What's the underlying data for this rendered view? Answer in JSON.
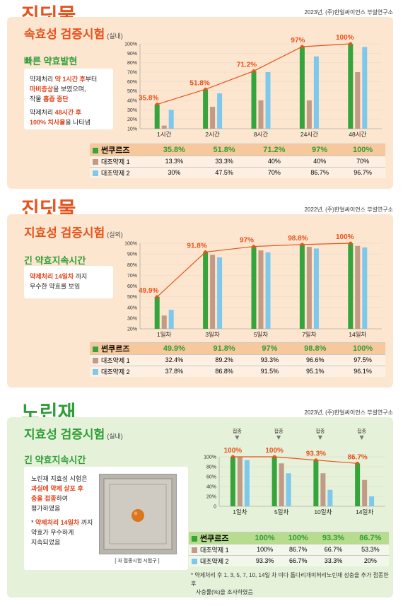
{
  "colors": {
    "main": "#35a53b",
    "ref1": "#c29a86",
    "ref2": "#7ec8ec",
    "line": "#e8521c",
    "title_orange": "#e8521c",
    "title_green": "#2f9e38"
  },
  "sections": [
    {
      "big_title": "진딧물",
      "source": "2023년, (주)한얼싸이언스 부설연구소",
      "panel_title": "속효성 검증시험",
      "panel_sub": "(실내)",
      "side_head": "빠른 약효발현",
      "note_lines": [
        {
          "parts": [
            [
              "약제처리 ",
              false
            ],
            [
              "약 1시간 후",
              true
            ],
            [
              "부터",
              false
            ]
          ]
        },
        {
          "parts": [
            [
              "마비증상",
              true
            ],
            [
              "을 보였으며,",
              false
            ]
          ]
        },
        {
          "parts": [
            [
              "작물 ",
              false
            ],
            [
              "흡즙 중단",
              true
            ]
          ]
        },
        {
          "parts": [
            [
              "약제처리 ",
              false
            ],
            [
              "48시간 후",
              true
            ]
          ]
        },
        {
          "parts": [
            [
              "100% 치사율",
              true
            ],
            [
              "을 나타냄",
              false
            ]
          ]
        }
      ]
    },
    {
      "big_title": "진딧물",
      "source": "2022년, (주)한얼싸이언스 부설연구소",
      "panel_title": "지효성 검증시험",
      "panel_sub": "(실외)",
      "side_head": "긴 약효지속시간",
      "note_lines": [
        {
          "parts": [
            [
              "약제처리 14일차",
              true
            ],
            [
              " 까지",
              false
            ]
          ]
        },
        {
          "parts": [
            [
              "우수한 약효를 보임",
              false
            ]
          ]
        }
      ]
    },
    {
      "big_title": "노린재",
      "source": "2023년, (주)한얼싸이언스 부설연구소",
      "panel_title": "지효성 검증시험",
      "panel_sub": "(실내)",
      "side_head": "긴 약효지속시간",
      "note_lines": [
        {
          "parts": [
            [
              "노린재 지효성 시험은",
              false
            ]
          ]
        },
        {
          "parts": [
            [
              "과실에 약제 살포 후",
              true
            ]
          ]
        },
        {
          "parts": [
            [
              "충을 접종",
              true
            ],
            [
              "하여",
              false
            ]
          ]
        },
        {
          "parts": [
            [
              "평가하였음",
              false
            ]
          ]
        },
        {
          "parts": [
            [
              "* ",
              false
            ],
            [
              "약제처리 14일차",
              true
            ],
            [
              " 까지",
              false
            ]
          ]
        },
        {
          "parts": [
            [
              "약효가 우수하게",
              false
            ]
          ]
        },
        {
          "parts": [
            [
              "지속되었음",
              false
            ]
          ]
        }
      ],
      "photo_caption": "[ 과 접종시험 시험구 ]",
      "inoculation_label": "접종",
      "footnote_1": "* 약제처리 후 1, 3, 5, 7, 10, 14일 차 미다 톱다리개미허리노린재 성충을 추가 접종한 후",
      "footnote_2": "사충률(%)을 조사하였음"
    }
  ],
  "chart_data": [
    {
      "type": "bar",
      "categories": [
        "1시간",
        "2시간",
        "8시간",
        "24시간",
        "48시간"
      ],
      "series": [
        {
          "name": "썬쿠르즈",
          "values": [
            35.8,
            51.8,
            71.2,
            97,
            100
          ],
          "labels": [
            "35.8%",
            "51.8%",
            "71.2%",
            "97%",
            "100%"
          ]
        },
        {
          "name": "대조약제 1",
          "values": [
            13.3,
            33.3,
            40,
            40,
            70
          ],
          "labels": [
            "13.3%",
            "33.3%",
            "40%",
            "40%",
            "70%"
          ]
        },
        {
          "name": "대조약제 2",
          "values": [
            30,
            47.5,
            70,
            86.7,
            96.7
          ],
          "labels": [
            "30%",
            "47.5%",
            "70%",
            "86.7%",
            "96.7%"
          ]
        }
      ],
      "yticks": [
        "100%",
        "90%",
        "80%",
        "70%",
        "60%",
        "50%",
        "40%",
        "30%",
        "20%",
        "10%"
      ],
      "ylim": [
        10,
        100
      ],
      "line_series": "썬쿠르즈"
    },
    {
      "type": "bar",
      "categories": [
        "1일차",
        "3일차",
        "5일차",
        "7일차",
        "14일차"
      ],
      "series": [
        {
          "name": "썬쿠르즈",
          "values": [
            49.9,
            91.8,
            97,
            98.8,
            100
          ],
          "labels": [
            "49.9%",
            "91.8%",
            "97%",
            "98.8%",
            "100%"
          ]
        },
        {
          "name": "대조약제 1",
          "values": [
            32.4,
            89.2,
            93.3,
            96.6,
            97.5
          ],
          "labels": [
            "32.4%",
            "89.2%",
            "93.3%",
            "96.6%",
            "97.5%"
          ]
        },
        {
          "name": "대조약제 2",
          "values": [
            37.8,
            86.8,
            91.5,
            95.1,
            96.1
          ],
          "labels": [
            "37.8%",
            "86.8%",
            "91.5%",
            "95.1%",
            "96.1%"
          ]
        }
      ],
      "yticks": [
        "100%",
        "90%",
        "80%",
        "70%",
        "60%",
        "50%",
        "40%",
        "30%",
        "20%"
      ],
      "ylim": [
        20,
        100
      ],
      "line_series": "썬쿠르즈"
    },
    {
      "type": "bar",
      "categories": [
        "1일차",
        "5일차",
        "10일차",
        "14일차"
      ],
      "series": [
        {
          "name": "썬쿠르즈",
          "values": [
            100,
            100,
            93.3,
            86.7
          ],
          "labels": [
            "100%",
            "100%",
            "93.3%",
            "86.7%"
          ]
        },
        {
          "name": "대조약제 1",
          "values": [
            100,
            86.7,
            66.7,
            53.3
          ],
          "labels": [
            "100%",
            "86.7%",
            "66.7%",
            "53.3%"
          ]
        },
        {
          "name": "대조약제 2",
          "values": [
            93.3,
            66.7,
            33.3,
            20
          ],
          "labels": [
            "93.3%",
            "66.7%",
            "33.3%",
            "20%"
          ]
        }
      ],
      "yticks": [
        "100%",
        "80%",
        "60%",
        "40%",
        "20%",
        "0"
      ],
      "ylim": [
        0,
        100
      ],
      "line_series": "썬쿠르즈"
    }
  ]
}
